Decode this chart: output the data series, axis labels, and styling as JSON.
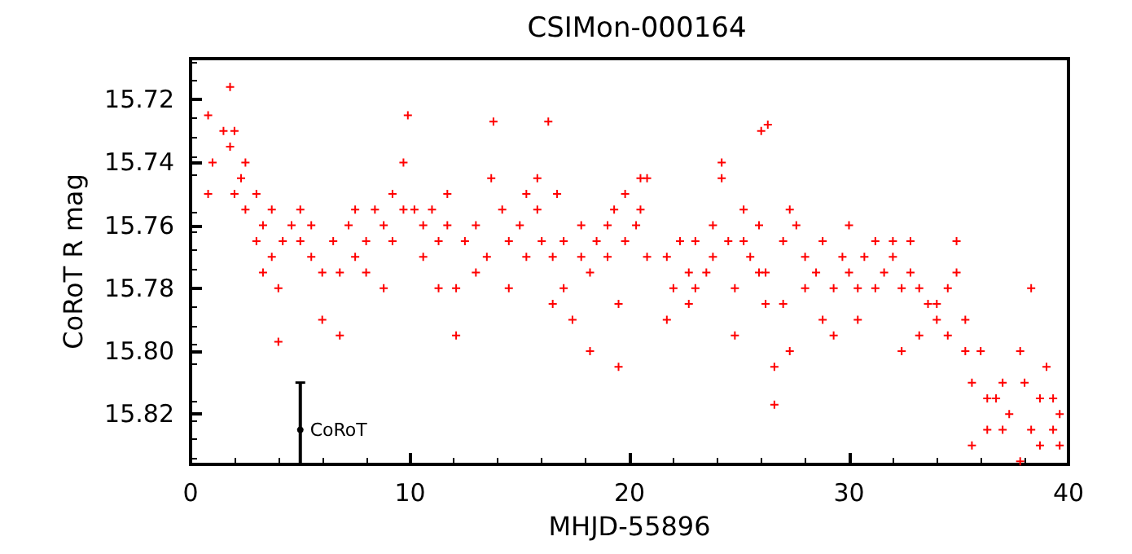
{
  "chart_data": {
    "type": "scatter",
    "title": "CSIMon-000164",
    "xlabel": "MHJD-55896",
    "ylabel": "CoRoT R mag",
    "xlim": [
      0,
      40
    ],
    "xticks": [
      0,
      10,
      20,
      30,
      40
    ],
    "ylim": [
      15.836,
      15.707
    ],
    "yticks": [
      15.72,
      15.74,
      15.76,
      15.78,
      {
        "value": 15.8,
        "label": "15.80"
      },
      15.82
    ],
    "grid": false,
    "legend": false,
    "series": [
      {
        "marker": "cross",
        "color": "#ff0000",
        "x": [
          0.8,
          0.8,
          1.0,
          1.5,
          1.8,
          1.8,
          2.0,
          2.0,
          2.3,
          2.5,
          2.5,
          3.0,
          3.0,
          3.3,
          3.3,
          3.7,
          3.7,
          4.0,
          4.0,
          4.2,
          4.6,
          5.0,
          5.0,
          5.5,
          5.5,
          6.0,
          6.0,
          6.5,
          6.8,
          6.8,
          7.2,
          7.5,
          7.5,
          8.0,
          8.0,
          8.4,
          8.8,
          8.8,
          9.2,
          9.2,
          9.7,
          9.7,
          9.9,
          10.2,
          10.6,
          10.6,
          11.0,
          11.3,
          11.3,
          11.7,
          11.7,
          12.1,
          12.1,
          12.5,
          13.0,
          13.0,
          13.5,
          13.7,
          13.8,
          14.2,
          14.5,
          14.5,
          15.0,
          15.3,
          15.3,
          15.8,
          15.8,
          16.0,
          16.3,
          16.5,
          16.5,
          16.7,
          17.0,
          17.0,
          17.4,
          17.8,
          17.8,
          18.2,
          18.2,
          18.5,
          19.0,
          19.0,
          19.3,
          19.5,
          19.5,
          19.8,
          19.8,
          20.3,
          20.5,
          20.5,
          20.8,
          20.8,
          21.7,
          21.7,
          22.0,
          22.3,
          22.7,
          22.7,
          23.0,
          23.0,
          23.5,
          23.8,
          23.8,
          24.2,
          24.2,
          24.5,
          24.8,
          24.8,
          25.2,
          25.2,
          25.5,
          25.9,
          25.9,
          26.0,
          26.2,
          26.2,
          26.3,
          26.6,
          26.6,
          27.0,
          27.0,
          27.3,
          27.3,
          27.6,
          28.0,
          28.0,
          28.5,
          28.8,
          28.8,
          29.3,
          29.3,
          29.7,
          30.0,
          30.0,
          30.4,
          30.4,
          30.7,
          31.2,
          31.2,
          31.6,
          32.0,
          32.0,
          32.4,
          32.4,
          32.8,
          32.8,
          33.2,
          33.2,
          33.6,
          34.0,
          34.0,
          34.5,
          34.5,
          34.9,
          34.9,
          35.3,
          35.3,
          35.6,
          35.6,
          36.0,
          36.3,
          36.3,
          36.7,
          37.0,
          37.0,
          37.3,
          37.8,
          37.8,
          38.0,
          38.3,
          38.3,
          38.7,
          38.7,
          39.0,
          39.3,
          39.3,
          39.6,
          39.6
        ],
        "values": [
          15.725,
          15.75,
          15.74,
          15.73,
          15.716,
          15.735,
          15.73,
          15.75,
          15.745,
          15.74,
          15.755,
          15.75,
          15.765,
          15.76,
          15.775,
          15.755,
          15.77,
          15.78,
          15.797,
          15.765,
          15.76,
          15.755,
          15.765,
          15.76,
          15.77,
          15.775,
          15.79,
          15.765,
          15.775,
          15.795,
          15.76,
          15.755,
          15.77,
          15.765,
          15.775,
          15.755,
          15.76,
          15.78,
          15.75,
          15.765,
          15.74,
          15.755,
          15.725,
          15.755,
          15.76,
          15.77,
          15.755,
          15.765,
          15.78,
          15.75,
          15.76,
          15.78,
          15.795,
          15.765,
          15.76,
          15.775,
          15.77,
          15.745,
          15.727,
          15.755,
          15.765,
          15.78,
          15.76,
          15.75,
          15.77,
          15.745,
          15.755,
          15.765,
          15.727,
          15.77,
          15.785,
          15.75,
          15.765,
          15.78,
          15.79,
          15.77,
          15.76,
          15.775,
          15.8,
          15.765,
          15.76,
          15.77,
          15.755,
          15.785,
          15.805,
          15.75,
          15.765,
          15.76,
          15.745,
          15.755,
          15.745,
          15.77,
          15.77,
          15.79,
          15.78,
          15.765,
          15.775,
          15.785,
          15.765,
          15.78,
          15.775,
          15.76,
          15.77,
          15.745,
          15.74,
          15.765,
          15.78,
          15.795,
          15.755,
          15.765,
          15.77,
          15.76,
          15.775,
          15.73,
          15.775,
          15.785,
          15.728,
          15.805,
          15.817,
          15.765,
          15.785,
          15.755,
          15.8,
          15.76,
          15.77,
          15.78,
          15.775,
          15.765,
          15.79,
          15.78,
          15.795,
          15.77,
          15.76,
          15.775,
          15.78,
          15.79,
          15.77,
          15.765,
          15.78,
          15.775,
          15.765,
          15.77,
          15.78,
          15.8,
          15.765,
          15.775,
          15.78,
          15.795,
          15.785,
          15.785,
          15.79,
          15.78,
          15.795,
          15.765,
          15.775,
          15.79,
          15.8,
          15.81,
          15.83,
          15.8,
          15.815,
          15.825,
          15.815,
          15.81,
          15.825,
          15.82,
          15.8,
          15.835,
          15.81,
          15.78,
          15.825,
          15.815,
          15.83,
          15.805,
          15.815,
          15.825,
          15.82,
          15.83
        ]
      },
      {
        "name": "CoRoT",
        "marker": "circle",
        "color": "#000000",
        "x": [
          5
        ],
        "values": [
          15.825
        ],
        "errors": [
          [
            15.81,
            15.836
          ]
        ]
      }
    ]
  }
}
